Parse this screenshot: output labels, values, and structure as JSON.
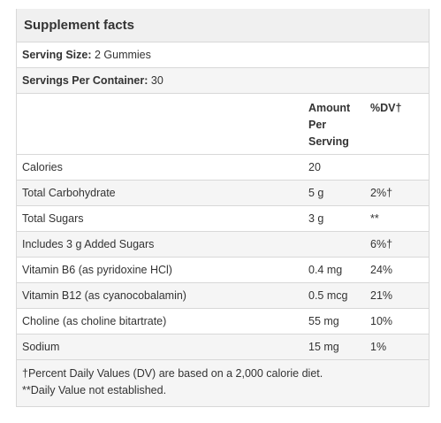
{
  "title": "Supplement facts",
  "serving_size": {
    "label": "Serving Size:",
    "value": "2 Gummies"
  },
  "servings_per_container": {
    "label": "Servings Per Container:",
    "value": "30"
  },
  "columns": {
    "amount": [
      "Amount",
      "Per",
      "Serving"
    ],
    "dv": "%DV†"
  },
  "rows": [
    {
      "name": "Calories",
      "amount": "20",
      "dv": ""
    },
    {
      "name": "Total Carbohydrate",
      "amount": "5 g",
      "dv": "2%†"
    },
    {
      "name": "Total Sugars",
      "amount": "3 g",
      "dv": "**"
    },
    {
      "name": "Includes 3 g Added Sugars",
      "amount": "",
      "dv": "6%†"
    },
    {
      "name": "Vitamin B6 (as pyridoxine HCl)",
      "amount": "0.4 mg",
      "dv": "24%"
    },
    {
      "name": "Vitamin B12 (as cyanocobalamin)",
      "amount": "0.5 mcg",
      "dv": "21%"
    },
    {
      "name": "Choline (as choline bitartrate)",
      "amount": "55 mg",
      "dv": "10%"
    },
    {
      "name": "Sodium",
      "amount": "15 mg",
      "dv": "1%"
    }
  ],
  "footnotes": [
    "†Percent Daily Values (DV) are based on a 2,000 calorie diet.",
    "**Daily Value not established."
  ]
}
